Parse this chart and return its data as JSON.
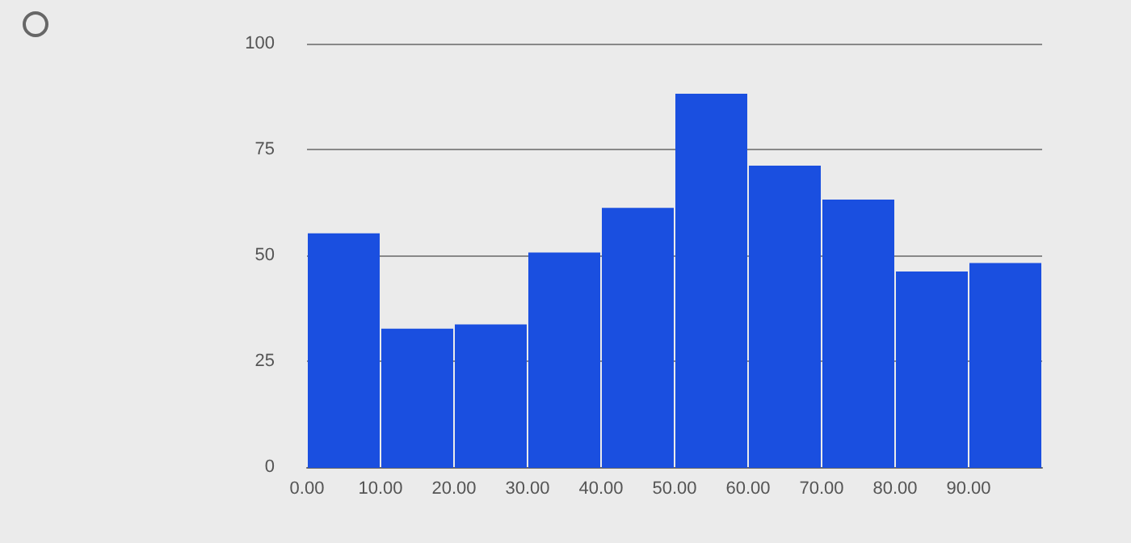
{
  "chart_data": {
    "type": "histogram",
    "bins": [
      0,
      10,
      20,
      30,
      40,
      50,
      60,
      70,
      80,
      90,
      100
    ],
    "values": [
      55,
      32.5,
      33.5,
      50.5,
      61,
      88,
      71,
      63,
      46,
      48
    ],
    "color": "#1a4fe0",
    "xlim": [
      0,
      100
    ],
    "xticks": [
      {
        "value": 0,
        "label": "0.00"
      },
      {
        "value": 10,
        "label": "10.00"
      },
      {
        "value": 20,
        "label": "20.00"
      },
      {
        "value": 30,
        "label": "30.00"
      },
      {
        "value": 40,
        "label": "40.00"
      },
      {
        "value": 50,
        "label": "50.00"
      },
      {
        "value": 60,
        "label": "60.00"
      },
      {
        "value": 70,
        "label": "70.00"
      },
      {
        "value": 80,
        "label": "80.00"
      },
      {
        "value": 90,
        "label": "90.00"
      }
    ],
    "ylim": [
      0,
      100
    ],
    "yticks": [
      0,
      25,
      50,
      75,
      100
    ],
    "grid": "y"
  }
}
